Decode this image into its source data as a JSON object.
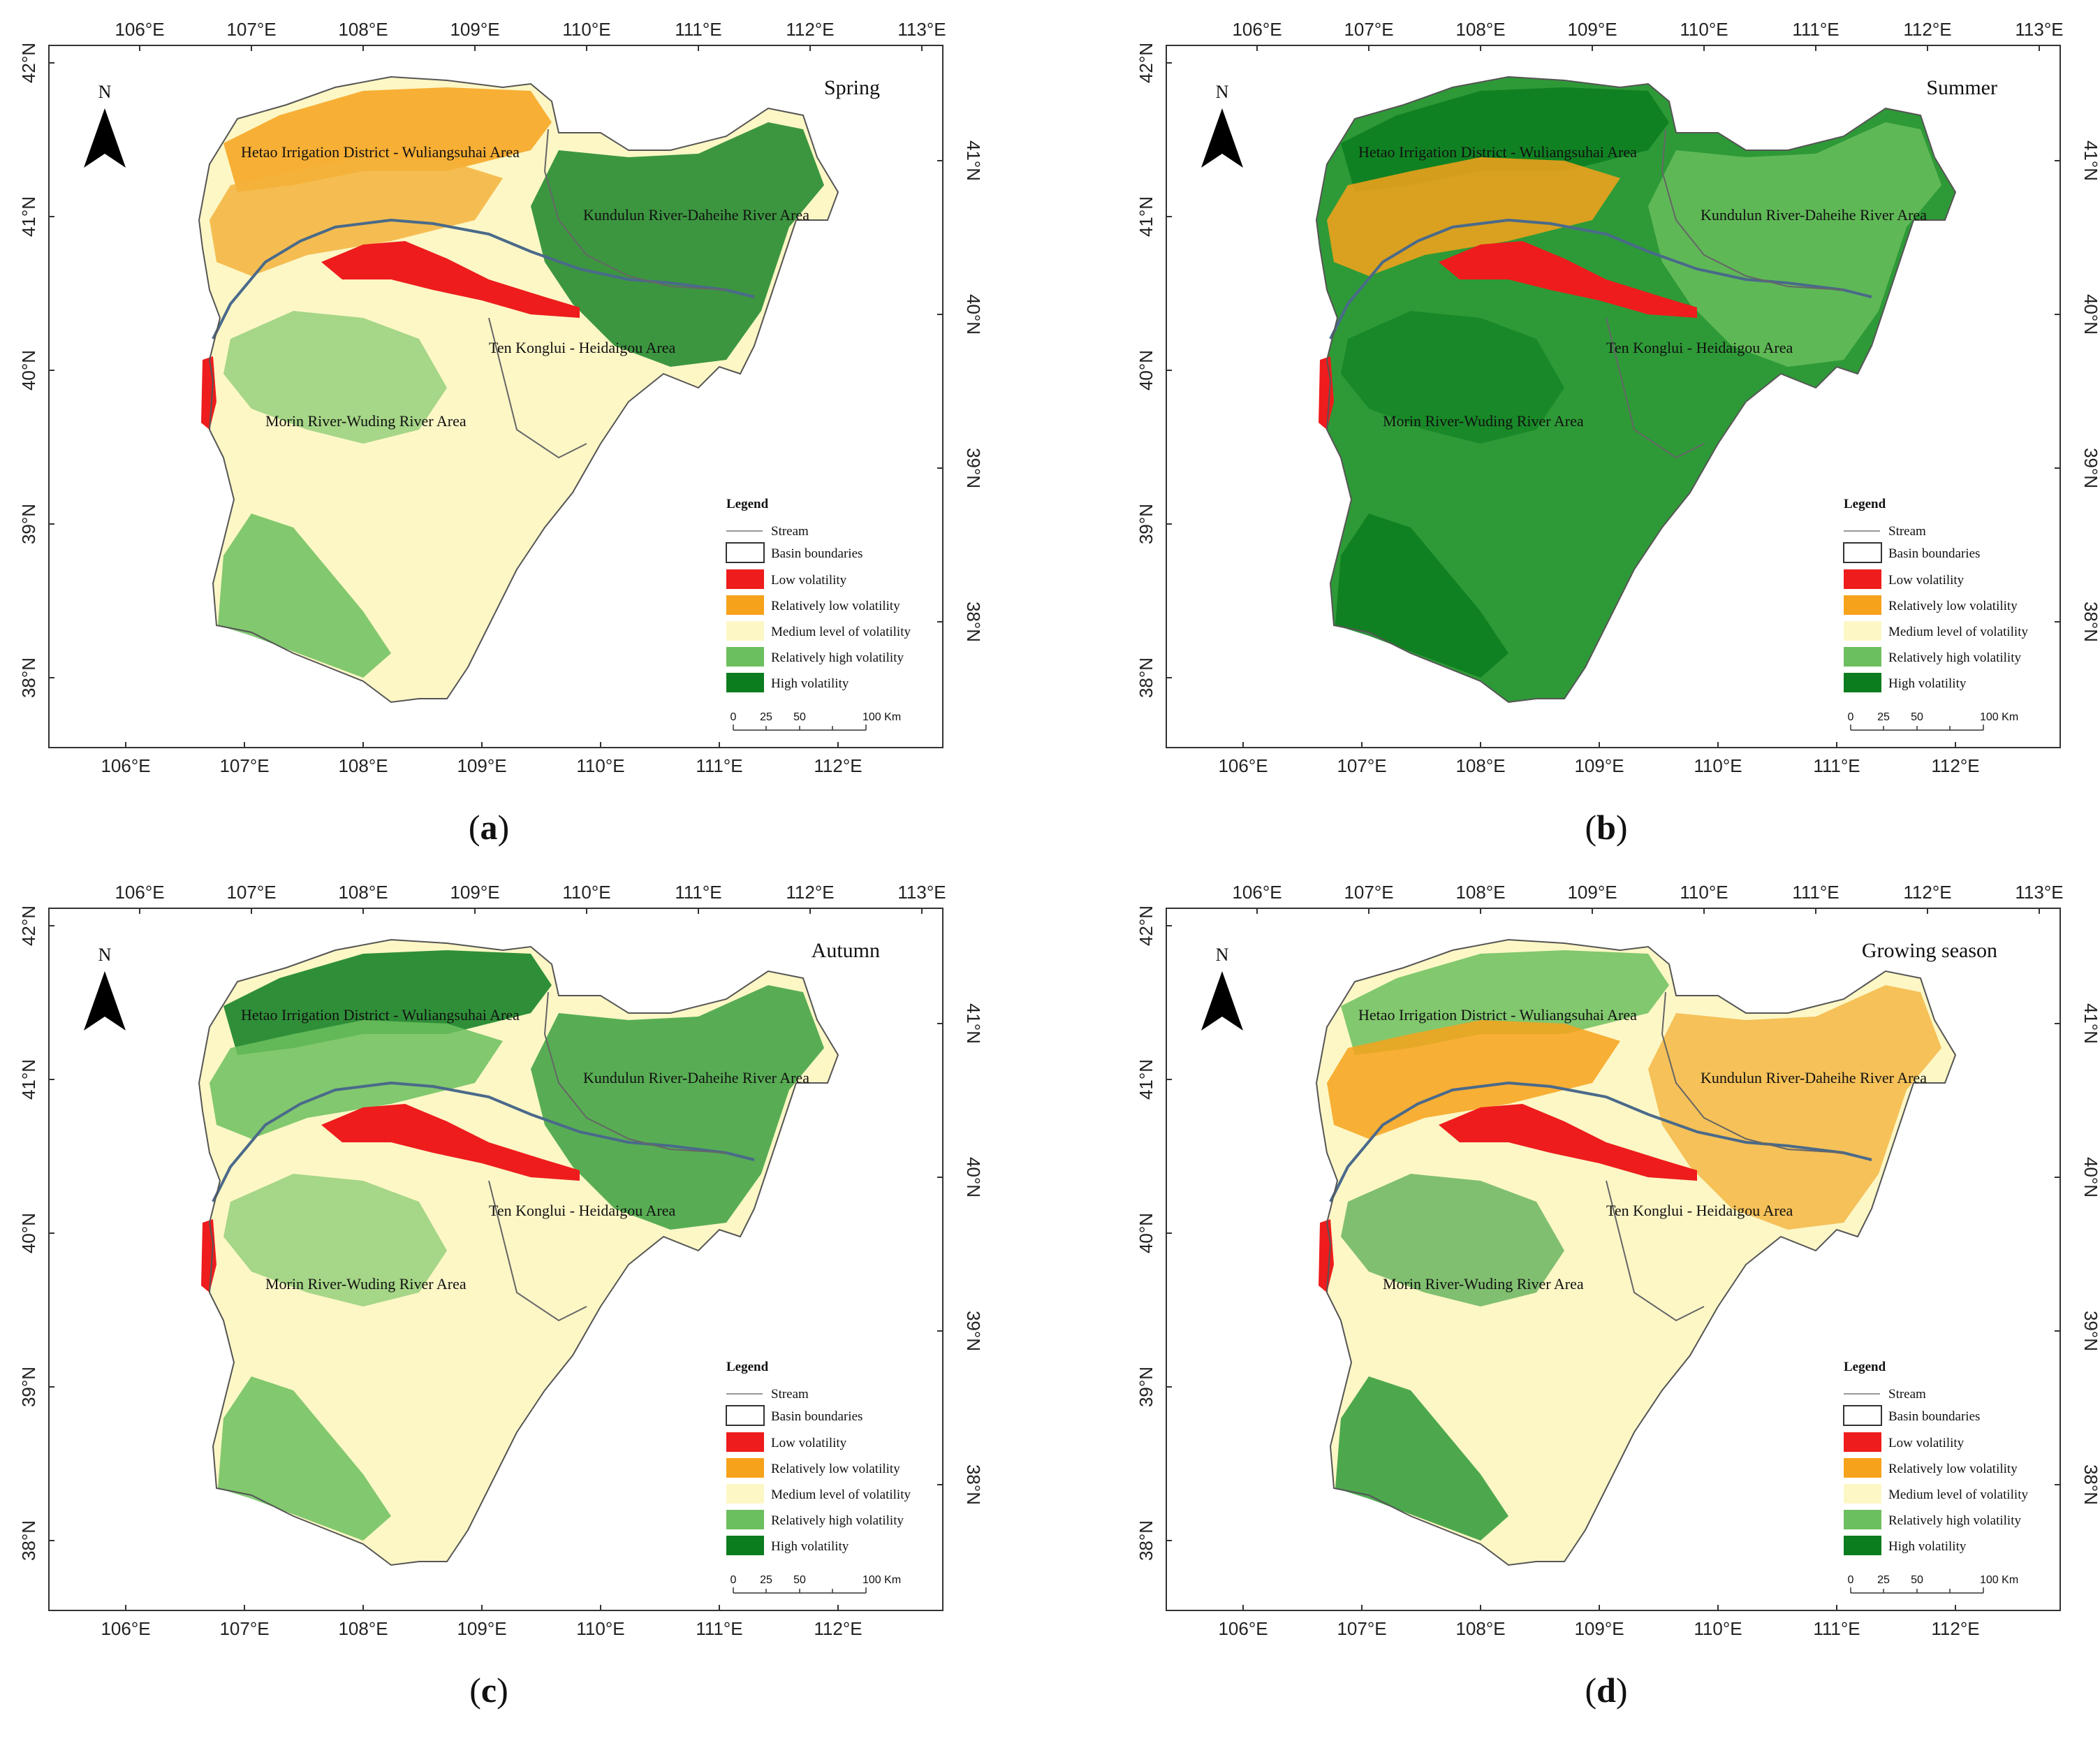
{
  "figure": {
    "axes": {
      "lon_top": [
        "106°E",
        "107°E",
        "108°E",
        "109°E",
        "110°E",
        "111°E",
        "112°E",
        "113°E"
      ],
      "lon_bottom": [
        "106°E",
        "107°E",
        "108°E",
        "109°E",
        "110°E",
        "111°E",
        "112°E"
      ],
      "lat_left": [
        "42°N",
        "41°N",
        "40°N",
        "39°N",
        "38°N"
      ],
      "lat_right": [
        "41°N",
        "40°N",
        "39°N",
        "38°N"
      ]
    },
    "north_label": "N",
    "regions": {
      "hetao": "Hetao Irrigation District - Wuliangsuhai Area",
      "kundulun": "Kundulun River-Daheihe River Area",
      "ten_konglui": "Ten Konglui - Heidaigou Area",
      "morin": "Morin River-Wuding River Area"
    },
    "legend": {
      "title": "Legend",
      "stream": "Stream",
      "basin": "Basin boundaries",
      "classes": [
        {
          "label": "Low volatility",
          "color": "#ee1c1c"
        },
        {
          "label": "Relatively low volatility",
          "color": "#f7a21b"
        },
        {
          "label": "Medium level of volatility",
          "color": "#fdf7c6"
        },
        {
          "label": "Relatively high volatility",
          "color": "#6cbf5e"
        },
        {
          "label": "High volatility",
          "color": "#0b7d1e"
        }
      ],
      "scale": {
        "ticks": [
          "0",
          "25",
          "50",
          "100 Km"
        ]
      }
    },
    "panels": [
      {
        "id": "a",
        "season": "Spring",
        "caption_open": "(",
        "caption_letter": "a",
        "caption_close": ")",
        "colors": {
          "base": "#fdf7c6",
          "hetao": "#f3b33c",
          "north": "#f7a21b",
          "south": "#6cbf5e",
          "east": "#0b7d1e",
          "river": "#ee1c1c"
        }
      },
      {
        "id": "b",
        "season": "Summer",
        "caption_open": "(",
        "caption_letter": "b",
        "caption_close": ")",
        "colors": {
          "base": "#2e9a37",
          "hetao": "#f7a21b",
          "north": "#0b7d1e",
          "south": "#0b7d1e",
          "east": "#6cbf5e",
          "river": "#ee1c1c"
        }
      },
      {
        "id": "c",
        "season": "Autumn",
        "caption_open": "(",
        "caption_letter": "c",
        "caption_close": ")",
        "colors": {
          "base": "#fdf7c6",
          "hetao": "#6cbf5e",
          "north": "#0b7d1e",
          "south": "#6cbf5e",
          "east": "#2e9a37",
          "river": "#ee1c1c"
        }
      },
      {
        "id": "d",
        "season": "Growing season",
        "caption_open": "(",
        "caption_letter": "d",
        "caption_close": ")",
        "colors": {
          "base": "#fdf7c6",
          "hetao": "#f7a21b",
          "north": "#6cbf5e",
          "south": "#2e9a37",
          "east": "#f3b33c",
          "river": "#ee1c1c"
        }
      }
    ]
  }
}
